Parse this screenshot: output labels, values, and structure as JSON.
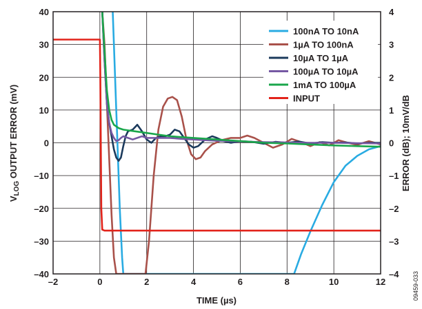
{
  "chart_data": {
    "type": "line",
    "xlabel": "TIME (µs)",
    "ylabel_main": "V",
    "ylabel_sub": "LOG",
    "ylabel_rest": " OUTPUT ERROR (mV)",
    "y2label": "ERROR (dB); 10mV/dB",
    "figure_id": "09459-033",
    "xlim": [
      -2,
      12
    ],
    "ylim": [
      -40,
      40
    ],
    "y2lim": [
      -4,
      4
    ],
    "x_ticks": [
      -2,
      0,
      2,
      4,
      6,
      8,
      10,
      12
    ],
    "x_tick_labels": [
      "–2",
      "0",
      "2",
      "4",
      "6",
      "8",
      "10",
      "12"
    ],
    "y_ticks": [
      -40,
      -30,
      -20,
      -10,
      0,
      10,
      20,
      30,
      40
    ],
    "y_tick_labels": [
      "–40",
      "–30",
      "–20",
      "–10",
      "0",
      "10",
      "20",
      "30",
      "40"
    ],
    "y2_ticks": [
      -4,
      -3,
      -2,
      -1,
      0,
      1,
      2,
      3,
      4
    ],
    "y2_tick_labels": [
      "–4",
      "–3",
      "–2",
      "–1",
      "0",
      "1",
      "2",
      "3",
      "4"
    ],
    "grid": true,
    "legend_position": "top-right",
    "series": [
      {
        "name": "100nA TO 10nA",
        "color": "#29abe2",
        "x": [
          0.55,
          0.65,
          0.75,
          0.85,
          0.95,
          1.0,
          1.05,
          8.3,
          8.6,
          9.0,
          9.5,
          10.0,
          10.5,
          11.0,
          11.5,
          12.0
        ],
        "y": [
          40,
          20,
          0,
          -20,
          -35,
          -40,
          -40,
          -40,
          -34,
          -27,
          -19,
          -12,
          -7,
          -4,
          -2,
          -1
        ]
      },
      {
        "name": "1µA TO 100nA",
        "color": "#a9514a",
        "x": [
          0.1,
          0.2,
          0.3,
          0.4,
          0.5,
          0.6,
          0.7,
          1.95,
          2.1,
          2.3,
          2.5,
          2.7,
          2.9,
          3.1,
          3.3,
          3.5,
          3.7,
          3.9,
          4.1,
          4.3,
          4.5,
          4.8,
          5.2,
          5.6,
          6.0,
          6.3,
          6.6,
          7.0,
          7.4,
          7.8,
          8.2,
          8.6,
          9.0,
          9.4,
          9.8,
          10.2,
          10.6,
          11.0,
          11.5,
          12.0
        ],
        "y": [
          40,
          30,
          12,
          -5,
          -22,
          -35,
          -40,
          -40,
          -30,
          -10,
          4,
          11,
          13.5,
          14,
          13,
          8,
          1,
          -3.5,
          -5,
          -4.5,
          -2.5,
          -0.5,
          0.8,
          1.5,
          1.5,
          2.2,
          1.5,
          0,
          -1.5,
          -0.5,
          1.2,
          0.2,
          -1,
          0.2,
          -0.8,
          0.8,
          0,
          -0.6,
          0.5,
          -0.5
        ]
      },
      {
        "name": "10µA TO 1µA",
        "color": "#1b3a5c",
        "x": [
          0.1,
          0.2,
          0.3,
          0.4,
          0.5,
          0.6,
          0.7,
          0.8,
          0.9,
          1.0,
          1.1,
          1.2,
          1.4,
          1.6,
          1.8,
          2.0,
          2.2,
          2.4,
          2.6,
          2.8,
          3.0,
          3.2,
          3.4,
          3.6,
          3.8,
          4.0,
          4.2,
          4.5,
          4.8,
          5.0,
          5.3,
          5.6,
          6.0,
          6.5,
          7.0,
          7.5,
          8.0,
          8.5,
          9.0,
          9.5,
          10.0,
          10.5,
          11.0,
          11.5,
          12.0
        ],
        "y": [
          40,
          25,
          12,
          6,
          2,
          -2,
          -4.5,
          -5.5,
          -4.5,
          -1,
          2,
          3.5,
          4,
          5.5,
          3.5,
          1,
          0,
          1.5,
          2,
          2,
          2.5,
          4,
          3.5,
          1.5,
          -0.5,
          -1.5,
          -1,
          1,
          2,
          1.5,
          0.5,
          0,
          0.5,
          0.3,
          -0.3,
          0.3,
          0,
          0.4,
          -0.2,
          0.2,
          0,
          0.1,
          -0.2,
          0,
          0
        ]
      },
      {
        "name": "100µA TO 10µA",
        "color": "#7558a3",
        "x": [
          0.1,
          0.2,
          0.3,
          0.4,
          0.5,
          0.6,
          0.7,
          0.8,
          0.9,
          1.0,
          1.2,
          1.4,
          1.6,
          1.8,
          2.0,
          2.5,
          3.0,
          3.5,
          4.0,
          4.5,
          5.0,
          5.5,
          6.0,
          7.0,
          8.0,
          9.0,
          10.0,
          11.0,
          12.0
        ],
        "y": [
          40,
          25,
          12,
          6,
          3,
          1.5,
          0.5,
          0.8,
          1.5,
          2,
          1.5,
          1,
          1.5,
          2,
          1.5,
          1.5,
          1.5,
          1.2,
          1,
          0.8,
          0.6,
          0.5,
          0.4,
          0.2,
          0.1,
          0,
          0,
          -0.1,
          -0.2
        ]
      },
      {
        "name": "1mA TO 100µA",
        "color": "#1aa64b",
        "x": [
          0.1,
          0.2,
          0.3,
          0.4,
          0.5,
          0.6,
          0.7,
          0.8,
          1.0,
          1.2,
          1.5,
          2.0,
          2.5,
          3.0,
          4.0,
          5.0,
          6.0,
          7.0,
          8.0,
          9.0,
          10.0,
          11.0,
          12.0
        ],
        "y": [
          40,
          28,
          16,
          10,
          7,
          5.5,
          5,
          4.5,
          4,
          3.8,
          3.5,
          3,
          2.5,
          2,
          1.5,
          1,
          0.5,
          0,
          -0.2,
          -0.5,
          -0.8,
          -1,
          -1.2
        ]
      },
      {
        "name": "INPUT",
        "color": "#e2231a",
        "x": [
          -2,
          0,
          0.02,
          0.06,
          0.1,
          0.2,
          12
        ],
        "y": [
          31.5,
          31.5,
          20,
          -20,
          -26.5,
          -26.8,
          -26.8
        ]
      }
    ]
  }
}
